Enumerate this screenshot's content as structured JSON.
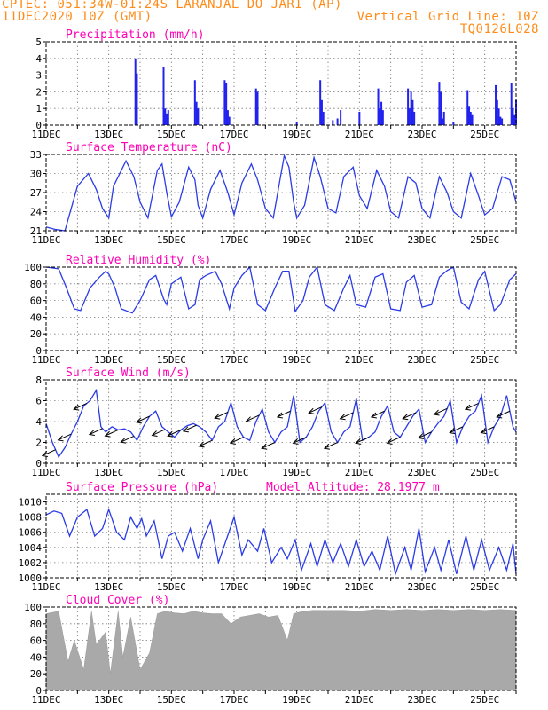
{
  "header": {
    "line1": "CPTEC:  051:34W-01:24S  LARANJAL DO JARI (AP)",
    "line2": "11DEC2020 10Z (GMT)",
    "grid_note": "Vertical Grid Line: 10Z",
    "code": "TQ0126L028"
  },
  "colors": {
    "header": "#ff8c1a",
    "title": "#ff00b4",
    "series": "#2b3be6",
    "bar": "#2222ee",
    "cloud": "#a9a9a9",
    "wind_arrow": "#000000"
  },
  "x_axis": {
    "date_labels": [
      "11DEC",
      "13DEC",
      "15DEC",
      "17DEC",
      "19DEC",
      "21DEC",
      "23DEC",
      "25DEC"
    ],
    "day_start": 11,
    "day_end": 26,
    "grid_interval_days": 1
  },
  "chart_data": [
    {
      "id": "precip",
      "type": "bar",
      "title": "Precipitation (mm/h)",
      "ylim": [
        0,
        5
      ],
      "yticks": [
        0,
        1,
        2,
        3,
        4,
        5
      ],
      "x": [
        13.85,
        13.9,
        14.75,
        14.8,
        14.85,
        14.9,
        15.75,
        15.8,
        15.85,
        16.7,
        16.75,
        16.8,
        16.85,
        17.7,
        17.75,
        19.0,
        19.75,
        19.8,
        19.85,
        20.15,
        20.3,
        20.4,
        21.0,
        21.6,
        21.65,
        21.7,
        21.75,
        22.55,
        22.6,
        22.65,
        22.7,
        22.75,
        23.55,
        23.6,
        23.65,
        23.7,
        24.0,
        24.45,
        24.5,
        24.55,
        24.6,
        25.35,
        25.4,
        25.45,
        25.5,
        25.55,
        25.85,
        25.9,
        25.95,
        26.0
      ],
      "values": [
        4.0,
        3.1,
        3.5,
        1.0,
        0.7,
        0.9,
        2.7,
        1.4,
        1.0,
        2.7,
        2.5,
        0.9,
        0.5,
        2.2,
        2.0,
        0.2,
        2.7,
        1.5,
        0.8,
        0.3,
        0.4,
        0.9,
        0.8,
        2.2,
        1.0,
        1.4,
        0.9,
        2.2,
        1.0,
        2.0,
        1.5,
        0.8,
        2.6,
        2.0,
        0.4,
        0.8,
        0.2,
        2.1,
        1.1,
        0.8,
        0.6,
        2.4,
        1.5,
        1.0,
        0.5,
        0.4,
        2.5,
        1.0,
        0.6,
        1.5
      ]
    },
    {
      "id": "temp",
      "type": "line",
      "title": "Surface Temperature (nC)",
      "ylim": [
        21,
        33
      ],
      "yticks": [
        21,
        24,
        27,
        30,
        33
      ],
      "x": [
        11.0,
        11.3,
        11.6,
        11.8,
        12.0,
        12.35,
        12.6,
        12.8,
        13.0,
        13.15,
        13.55,
        13.8,
        14.0,
        14.25,
        14.55,
        14.7,
        14.85,
        15.0,
        15.25,
        15.55,
        15.75,
        15.85,
        16.0,
        16.25,
        16.55,
        16.8,
        17.0,
        17.25,
        17.55,
        17.75,
        18.0,
        18.25,
        18.6,
        18.75,
        18.9,
        19.0,
        19.25,
        19.55,
        19.75,
        20.0,
        20.25,
        20.5,
        20.8,
        21.0,
        21.25,
        21.55,
        21.8,
        22.0,
        22.25,
        22.55,
        22.8,
        23.0,
        23.25,
        23.55,
        23.8,
        24.0,
        24.25,
        24.55,
        24.8,
        25.0,
        25.25,
        25.55,
        25.8,
        26.0
      ],
      "values": [
        21.6,
        21.2,
        21.0,
        24.5,
        28.0,
        30.0,
        27.5,
        24.5,
        23.0,
        28.0,
        32.0,
        29.5,
        25.5,
        23.0,
        30.5,
        31.5,
        27.0,
        23.2,
        25.5,
        31.0,
        29.0,
        25.0,
        23.0,
        27.5,
        30.5,
        27.0,
        23.5,
        28.5,
        31.5,
        29.0,
        24.5,
        23.0,
        32.8,
        31.0,
        25.5,
        23.0,
        25.0,
        32.5,
        29.5,
        24.5,
        23.8,
        29.5,
        31.0,
        26.5,
        24.5,
        30.5,
        28.0,
        24.0,
        23.0,
        29.5,
        28.5,
        24.5,
        23.0,
        29.5,
        27.0,
        24.0,
        23.0,
        30.0,
        26.5,
        23.5,
        24.5,
        29.5,
        29.0,
        25.5
      ]
    },
    {
      "id": "rh",
      "type": "line",
      "title": "Relative Humidity (%)",
      "ylim": [
        0,
        100
      ],
      "yticks": [
        0,
        20,
        40,
        60,
        80,
        100
      ],
      "x": [
        11.0,
        11.4,
        11.65,
        11.9,
        12.1,
        12.4,
        12.7,
        12.9,
        13.0,
        13.2,
        13.4,
        13.75,
        14.0,
        14.3,
        14.5,
        14.75,
        14.85,
        15.0,
        15.3,
        15.55,
        15.75,
        15.9,
        16.1,
        16.4,
        16.6,
        16.85,
        17.0,
        17.25,
        17.5,
        17.75,
        18.0,
        18.3,
        18.55,
        18.75,
        18.95,
        19.2,
        19.4,
        19.65,
        19.9,
        20.2,
        20.5,
        20.7,
        20.9,
        21.2,
        21.5,
        21.75,
        22.0,
        22.3,
        22.5,
        22.75,
        23.0,
        23.3,
        23.55,
        23.8,
        24.0,
        24.25,
        24.5,
        24.8,
        25.0,
        25.3,
        25.5,
        25.8,
        26.0
      ],
      "values": [
        100,
        98,
        75,
        50,
        48,
        75,
        88,
        95,
        92,
        75,
        50,
        45,
        60,
        85,
        90,
        62,
        55,
        80,
        88,
        50,
        55,
        85,
        90,
        95,
        80,
        50,
        75,
        90,
        100,
        55,
        48,
        75,
        95,
        95,
        47,
        60,
        88,
        100,
        55,
        48,
        75,
        90,
        55,
        52,
        88,
        92,
        50,
        48,
        82,
        90,
        52,
        55,
        88,
        96,
        100,
        58,
        50,
        85,
        95,
        48,
        55,
        85,
        92
      ]
    },
    {
      "id": "wind",
      "type": "line",
      "title": "Surface Wind (m/s)",
      "ylim": [
        0,
        8
      ],
      "yticks": [
        0,
        2,
        4,
        6,
        8
      ],
      "x": [
        11.0,
        11.2,
        11.4,
        11.6,
        11.8,
        12.0,
        12.2,
        12.4,
        12.6,
        12.75,
        12.9,
        13.1,
        13.3,
        13.5,
        13.7,
        13.9,
        14.1,
        14.3,
        14.5,
        14.7,
        14.9,
        15.1,
        15.3,
        15.5,
        15.7,
        15.9,
        16.1,
        16.3,
        16.5,
        16.7,
        16.9,
        17.1,
        17.3,
        17.5,
        17.7,
        17.9,
        18.1,
        18.3,
        18.5,
        18.7,
        18.9,
        19.1,
        19.3,
        19.5,
        19.7,
        19.9,
        20.1,
        20.3,
        20.5,
        20.7,
        20.9,
        21.1,
        21.3,
        21.5,
        21.7,
        21.9,
        22.1,
        22.3,
        22.5,
        22.7,
        22.9,
        23.1,
        23.3,
        23.5,
        23.7,
        23.9,
        24.1,
        24.3,
        24.5,
        24.7,
        24.9,
        25.1,
        25.3,
        25.5,
        25.7,
        25.9,
        26.0
      ],
      "values": [
        3.8,
        2.0,
        0.6,
        1.5,
        2.8,
        4.0,
        5.5,
        6.0,
        7.0,
        3.5,
        3.0,
        3.5,
        3.2,
        3.3,
        3.0,
        2.2,
        3.5,
        4.5,
        5.0,
        3.5,
        3.0,
        2.5,
        3.2,
        3.6,
        3.8,
        3.5,
        3.0,
        2.2,
        3.5,
        4.0,
        5.8,
        3.5,
        2.5,
        2.2,
        4.0,
        5.2,
        3.0,
        2.0,
        3.0,
        3.5,
        6.5,
        2.0,
        2.5,
        3.5,
        5.0,
        5.8,
        3.0,
        2.0,
        3.0,
        3.5,
        6.2,
        2.2,
        2.5,
        3.0,
        4.5,
        5.5,
        3.0,
        2.5,
        3.5,
        4.5,
        5.2,
        2.0,
        3.0,
        3.8,
        4.5,
        6.0,
        2.0,
        3.5,
        4.5,
        5.0,
        6.5,
        2.0,
        3.5,
        4.5,
        6.5,
        3.5,
        3.0
      ]
    },
    {
      "id": "pressure",
      "type": "line",
      "title": "Surface Pressure (hPa)",
      "subtitle": "Model Altitude: 28.1977 m",
      "ylim": [
        1000,
        1011
      ],
      "yticks": [
        1000,
        1002,
        1004,
        1006,
        1008,
        1010
      ],
      "x": [
        11.0,
        11.25,
        11.5,
        11.75,
        12.0,
        12.3,
        12.55,
        12.8,
        13.0,
        13.25,
        13.5,
        13.7,
        13.9,
        14.05,
        14.2,
        14.45,
        14.7,
        14.9,
        15.1,
        15.35,
        15.6,
        15.85,
        16.0,
        16.25,
        16.5,
        16.75,
        17.0,
        17.25,
        17.45,
        17.75,
        17.95,
        18.2,
        18.5,
        18.7,
        18.95,
        19.15,
        19.45,
        19.65,
        19.9,
        20.15,
        20.4,
        20.65,
        20.9,
        21.15,
        21.4,
        21.65,
        21.9,
        22.15,
        22.45,
        22.65,
        22.9,
        23.1,
        23.4,
        23.6,
        23.85,
        24.1,
        24.4,
        24.65,
        24.9,
        25.15,
        25.45,
        25.7,
        25.9,
        26.0
      ],
      "values": [
        1008.3,
        1008.8,
        1008.5,
        1005.5,
        1008.0,
        1009.0,
        1005.5,
        1006.5,
        1009.0,
        1006.0,
        1005.0,
        1008.0,
        1006.5,
        1007.8,
        1005.5,
        1007.5,
        1002.5,
        1005.5,
        1006.0,
        1003.5,
        1006.5,
        1002.5,
        1005.0,
        1007.5,
        1002.0,
        1005.0,
        1008.0,
        1003.0,
        1005.0,
        1003.5,
        1006.5,
        1002.0,
        1004.0,
        1002.5,
        1005.0,
        1001.0,
        1004.5,
        1001.5,
        1005.0,
        1002.0,
        1004.5,
        1001.5,
        1005.0,
        1001.5,
        1003.5,
        1001.0,
        1005.5,
        1000.5,
        1004.0,
        1001.0,
        1006.5,
        1000.8,
        1004.0,
        1001.0,
        1005.0,
        1000.5,
        1005.5,
        1001.0,
        1005.0,
        1001.0,
        1004.0,
        1001.0,
        1004.5,
        1000.5
      ]
    },
    {
      "id": "cloud",
      "type": "area",
      "title": "Cloud Cover (%)",
      "ylim": [
        0,
        100
      ],
      "yticks": [
        0,
        20,
        40,
        60,
        80,
        100
      ],
      "x": [
        11.0,
        11.4,
        11.7,
        11.9,
        12.2,
        12.45,
        12.6,
        12.9,
        13.05,
        13.3,
        13.45,
        13.7,
        14.0,
        14.3,
        14.55,
        14.8,
        15.1,
        15.4,
        15.7,
        16.0,
        16.3,
        16.6,
        16.9,
        17.2,
        17.5,
        17.8,
        18.1,
        18.4,
        18.7,
        18.9,
        19.1,
        19.5,
        20.0,
        20.5,
        21.0,
        21.5,
        22.0,
        22.5,
        23.0,
        23.5,
        24.0,
        24.5,
        25.0,
        25.5,
        26.0
      ],
      "values": [
        92,
        95,
        35,
        60,
        25,
        95,
        55,
        70,
        20,
        95,
        40,
        88,
        25,
        45,
        92,
        95,
        93,
        92,
        95,
        93,
        92,
        92,
        80,
        88,
        90,
        92,
        88,
        90,
        60,
        92,
        94,
        96,
        96,
        96,
        95,
        97,
        96,
        97,
        96,
        97,
        96,
        97,
        96,
        97,
        96
      ]
    }
  ]
}
